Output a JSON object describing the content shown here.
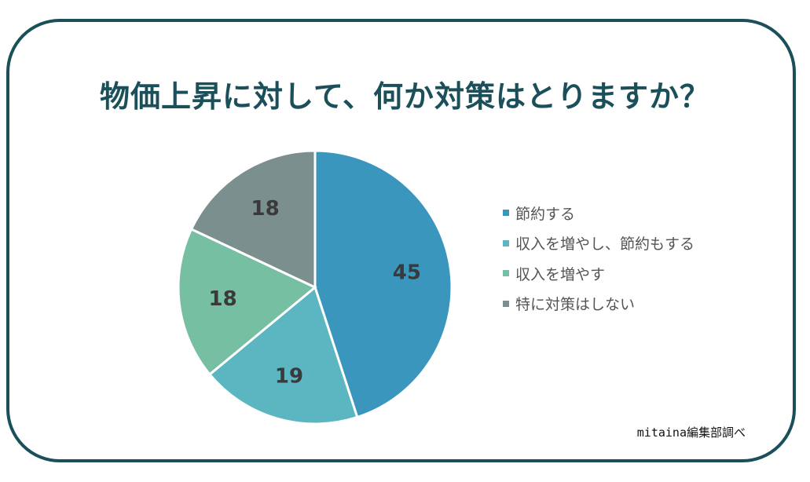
{
  "title": "物価上昇に対して、何か対策はとりますか？",
  "source": "mitaina編集部調べ",
  "chart_data": {
    "type": "pie",
    "title": "物価上昇に対して、何か対策はとりますか？",
    "categories": [
      "節約する",
      "収入を増やし、節約もする",
      "収入を増やす",
      "特に対策はしない"
    ],
    "values": [
      45,
      19,
      18,
      18
    ],
    "colors": [
      "#3a96bd",
      "#5bb6c2",
      "#76bfa2",
      "#7a8f8e"
    ],
    "data_labels": [
      "45",
      "19",
      "18",
      "18"
    ],
    "legend_position": "right"
  }
}
